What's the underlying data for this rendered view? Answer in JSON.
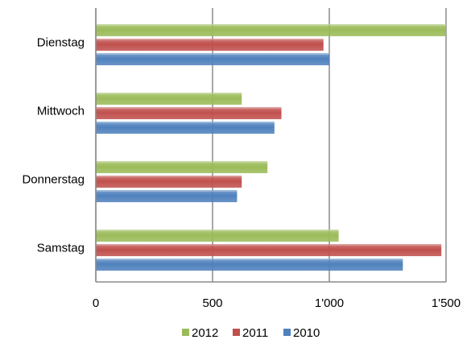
{
  "chart_data": {
    "type": "bar",
    "orientation": "horizontal",
    "categories": [
      "Dienstag",
      "Mittwoch",
      "Donnerstag",
      "Samstag"
    ],
    "series": [
      {
        "name": "2012",
        "values": [
          1500,
          625,
          735,
          1040
        ],
        "color": "#9bbb59"
      },
      {
        "name": "2011",
        "values": [
          975,
          795,
          625,
          1480
        ],
        "color": "#c0504d"
      },
      {
        "name": "2010",
        "values": [
          1000,
          765,
          605,
          1315
        ],
        "color": "#4f81bd"
      }
    ],
    "x_ticks": [
      "0",
      "500",
      "1'000",
      "1'500"
    ],
    "xlim": [
      0,
      1500
    ],
    "grid": "vertical major gridlines",
    "legend_position": "bottom",
    "title": "",
    "xlabel": "",
    "ylabel": ""
  }
}
